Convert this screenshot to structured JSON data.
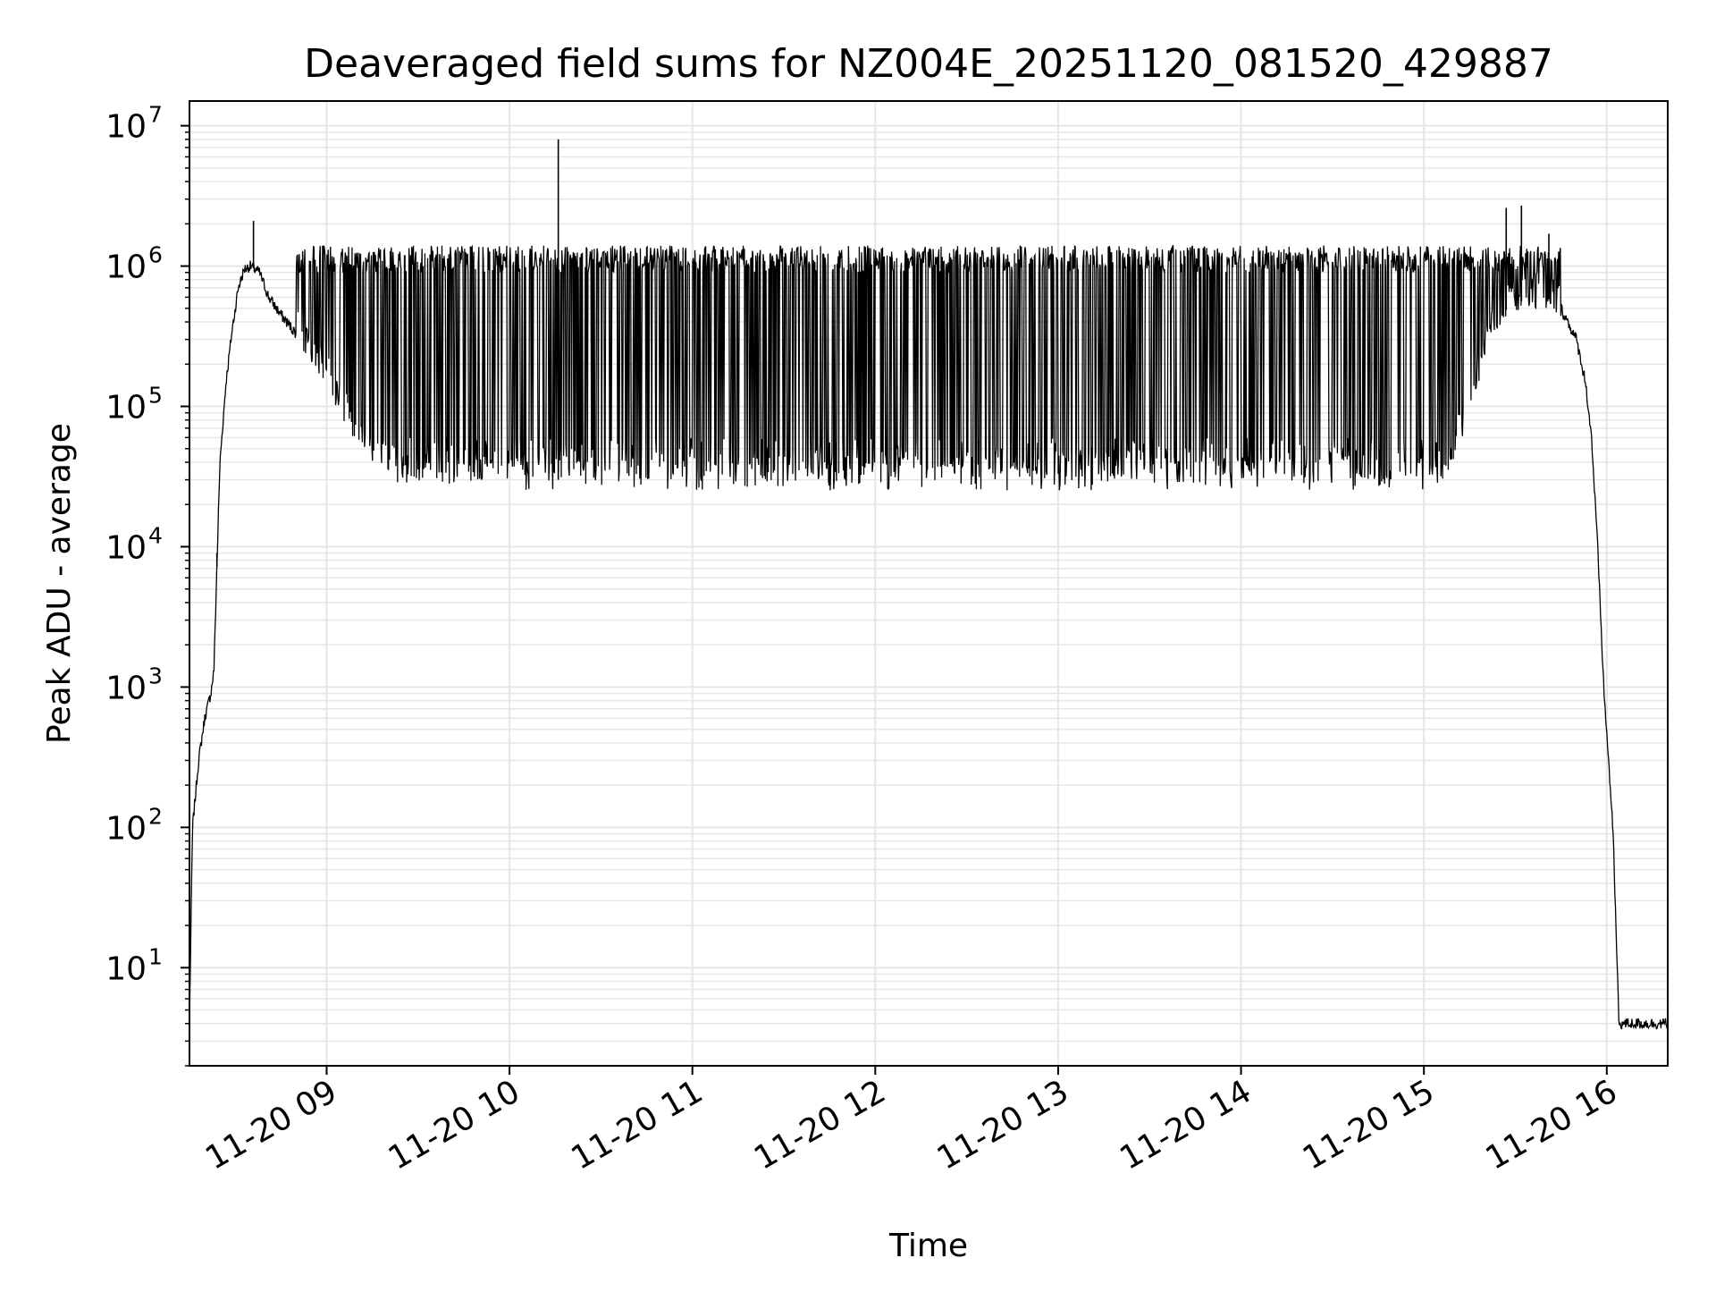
{
  "chart_data": {
    "type": "line",
    "title": "Deaveraged field sums for NZ004E_20251120_081520_429887",
    "xlabel": "Time",
    "ylabel": "Peak ADU - average",
    "x_axis": {
      "kind": "datetime",
      "range": [
        "2025-11-20 08:15",
        "2025-11-20 16:20"
      ],
      "ticks": [
        {
          "value": "2025-11-20 09:00",
          "label": "11-20 09"
        },
        {
          "value": "2025-11-20 10:00",
          "label": "11-20 10"
        },
        {
          "value": "2025-11-20 11:00",
          "label": "11-20 11"
        },
        {
          "value": "2025-11-20 12:00",
          "label": "11-20 12"
        },
        {
          "value": "2025-11-20 13:00",
          "label": "11-20 13"
        },
        {
          "value": "2025-11-20 14:00",
          "label": "11-20 14"
        },
        {
          "value": "2025-11-20 15:00",
          "label": "11-20 15"
        },
        {
          "value": "2025-11-20 16:00",
          "label": "11-20 16"
        }
      ],
      "tick_label_rotation_deg": 30
    },
    "y_axis": {
      "scale": "log",
      "range": [
        2,
        15000000
      ],
      "ticks": [
        {
          "value": 10,
          "base": "10",
          "exp": "1"
        },
        {
          "value": 100,
          "base": "10",
          "exp": "2"
        },
        {
          "value": 1000,
          "base": "10",
          "exp": "3"
        },
        {
          "value": 10000,
          "base": "10",
          "exp": "4"
        },
        {
          "value": 100000,
          "base": "10",
          "exp": "5"
        },
        {
          "value": 1000000,
          "base": "10",
          "exp": "6"
        },
        {
          "value": 10000000,
          "base": "10",
          "exp": "7"
        }
      ]
    },
    "grid": true,
    "grid_color": "#e6e6e6",
    "line_color": "#000000",
    "envelope": [
      {
        "x": "2025-11-20 08:15",
        "y": 4
      },
      {
        "x": "2025-11-20 08:16",
        "y": 100
      },
      {
        "x": "2025-11-20 08:18",
        "y": 300
      },
      {
        "x": "2025-11-20 08:20",
        "y": 600
      },
      {
        "x": "2025-11-20 08:22",
        "y": 900
      },
      {
        "x": "2025-11-20 08:23",
        "y": 1300
      },
      {
        "x": "2025-11-20 08:25",
        "y": 40000
      },
      {
        "x": "2025-11-20 08:27",
        "y": 150000
      },
      {
        "x": "2025-11-20 08:29",
        "y": 350000
      },
      {
        "x": "2025-11-20 08:31",
        "y": 700000
      },
      {
        "x": "2025-11-20 08:33",
        "y": 950000
      },
      {
        "x": "2025-11-20 08:35",
        "y": 1000000
      },
      {
        "x": "2025-11-20 08:38",
        "y": 900000
      },
      {
        "x": "2025-11-20 08:41",
        "y": 600000
      },
      {
        "x": "2025-11-20 08:45",
        "y": 450000
      },
      {
        "x": "2025-11-20 08:50",
        "y": 330000
      },
      {
        "x": "2025-11-20 08:55",
        "y": 230000
      },
      {
        "x": "2025-11-20 09:00",
        "y": 160000
      },
      {
        "x": "2025-11-20 09:06",
        "y": 90000
      },
      {
        "x": "2025-11-20 09:12",
        "y": 50000
      },
      {
        "x": "2025-11-20 09:18",
        "y": 38000
      },
      {
        "x": "2025-11-20 09:25",
        "y": 30000
      },
      {
        "x": "2025-11-20 15:05",
        "y": 30000
      },
      {
        "x": "2025-11-20 15:10",
        "y": 50000
      },
      {
        "x": "2025-11-20 15:15",
        "y": 100000
      },
      {
        "x": "2025-11-20 15:20",
        "y": 250000
      },
      {
        "x": "2025-11-20 15:25",
        "y": 450000
      },
      {
        "x": "2025-11-20 15:30",
        "y": 550000
      },
      {
        "x": "2025-11-20 15:40",
        "y": 600000
      },
      {
        "x": "2025-11-20 15:45",
        "y": 500000
      },
      {
        "x": "2025-11-20 15:50",
        "y": 300000
      },
      {
        "x": "2025-11-20 15:53",
        "y": 150000
      },
      {
        "x": "2025-11-20 15:55",
        "y": 60000
      },
      {
        "x": "2025-11-20 15:57",
        "y": 10000
      },
      {
        "x": "2025-11-20 15:59",
        "y": 1000
      },
      {
        "x": "2025-11-20 16:02",
        "y": 100
      },
      {
        "x": "2025-11-20 16:04",
        "y": 4
      },
      {
        "x": "2025-11-20 16:20",
        "y": 4
      }
    ],
    "spikes": [
      {
        "x": "2025-11-20 08:24",
        "y": 9000
      },
      {
        "x": "2025-11-20 08:36",
        "y": 2100000
      },
      {
        "x": "2025-11-20 10:16",
        "y": 8000000
      },
      {
        "x": "2025-11-20 15:27",
        "y": 2600000
      },
      {
        "x": "2025-11-20 15:32",
        "y": 2700000
      },
      {
        "x": "2025-11-20 15:41",
        "y": 1700000
      }
    ],
    "oscillation": {
      "from": "2025-11-20 08:50",
      "to": "2025-11-20 15:45",
      "high": [
        900000,
        1400000
      ],
      "low": [
        18000,
        60000
      ],
      "count": 1400
    }
  }
}
